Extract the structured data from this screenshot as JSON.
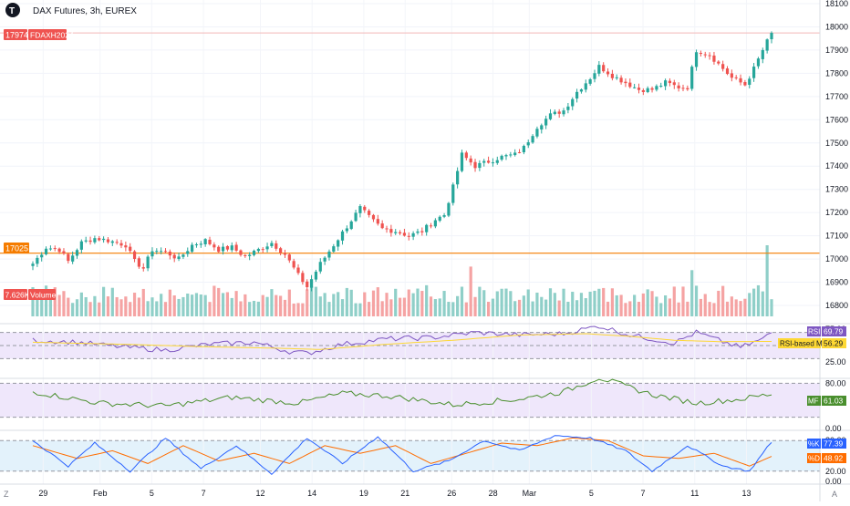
{
  "header": {
    "title": "DAX Futures, 3h, EUREX",
    "corner_icon": "logo-icon"
  },
  "price_scale": {
    "ticks": [
      "18100",
      "18000",
      "17900",
      "17800",
      "17700",
      "17600",
      "17500",
      "17400",
      "17300",
      "17200",
      "17100",
      "17000",
      "16900",
      "16800"
    ],
    "last_price": "17974",
    "symbol_label": "FDAXH2024",
    "level_label": "17025",
    "volume_label": "Volume",
    "volume_value": "7.626K"
  },
  "rsi_panel": {
    "label": "RSI",
    "value": "69.79",
    "ma_label": "RSI-based MA",
    "ma_value": "56.29",
    "ticks": [
      "75.00",
      "50.00",
      "25.00"
    ]
  },
  "mf_panel": {
    "label": "MF",
    "value": "61.03",
    "ticks": [
      "80.00",
      "0.00"
    ]
  },
  "stoch_panel": {
    "k_label": "%K",
    "k_value": "77.39",
    "d_label": "%D",
    "d_value": "48.92",
    "ticks": [
      "80.00",
      "20.00",
      "0.00"
    ]
  },
  "time_axis": {
    "labels": [
      "29",
      "Feb",
      "5",
      "7",
      "12",
      "14",
      "19",
      "21",
      "26",
      "28",
      "Mar",
      "5",
      "7",
      "11",
      "13"
    ],
    "left_icon": "Z",
    "right_icon": "A"
  },
  "colors": {
    "up": "#26a69a",
    "down": "#ef5350",
    "vol_up": "#8fcfc8",
    "vol_down": "#f5a3a3",
    "level": "#f57c00",
    "last": "#ef5350",
    "rsi": "#7e57c2",
    "rsi_ma": "#fdd835",
    "mf": "#4a8f2e",
    "k": "#2962ff",
    "d": "#ff6d00"
  },
  "chart_data": {
    "type": "candlestick",
    "title": "DAX Futures, 3h, EUREX",
    "ylim": [
      16800,
      18100
    ],
    "level_line": 17025,
    "last_price": 17974,
    "anchors": [
      [
        0,
        16980
      ],
      [
        3,
        17050
      ],
      [
        6,
        17040
      ],
      [
        8,
        16990
      ],
      [
        11,
        17070
      ],
      [
        14,
        17090
      ],
      [
        17,
        17080
      ],
      [
        21,
        17060
      ],
      [
        23,
        16990
      ],
      [
        25,
        16960
      ],
      [
        27,
        17040
      ],
      [
        30,
        17030
      ],
      [
        33,
        17000
      ],
      [
        36,
        17060
      ],
      [
        39,
        17080
      ],
      [
        42,
        17040
      ],
      [
        45,
        17050
      ],
      [
        48,
        17010
      ],
      [
        51,
        17040
      ],
      [
        54,
        17070
      ],
      [
        57,
        17020
      ],
      [
        60,
        16930
      ],
      [
        62,
        16880
      ],
      [
        65,
        16980
      ],
      [
        68,
        17060
      ],
      [
        71,
        17140
      ],
      [
        74,
        17220
      ],
      [
        76,
        17180
      ],
      [
        79,
        17130
      ],
      [
        82,
        17120
      ],
      [
        85,
        17100
      ],
      [
        88,
        17120
      ],
      [
        91,
        17170
      ],
      [
        93,
        17190
      ],
      [
        95,
        17310
      ],
      [
        97,
        17450
      ],
      [
        100,
        17400
      ],
      [
        103,
        17420
      ],
      [
        106,
        17440
      ],
      [
        109,
        17450
      ],
      [
        111,
        17480
      ],
      [
        114,
        17570
      ],
      [
        117,
        17620
      ],
      [
        120,
        17640
      ],
      [
        123,
        17720
      ],
      [
        126,
        17780
      ],
      [
        128,
        17830
      ],
      [
        131,
        17790
      ],
      [
        134,
        17760
      ],
      [
        137,
        17730
      ],
      [
        140,
        17730
      ],
      [
        143,
        17760
      ],
      [
        146,
        17740
      ],
      [
        148,
        17740
      ],
      [
        150,
        17900
      ],
      [
        153,
        17880
      ],
      [
        155,
        17840
      ],
      [
        158,
        17780
      ],
      [
        161,
        17750
      ],
      [
        163,
        17820
      ],
      [
        165,
        17900
      ],
      [
        167,
        17974
      ]
    ],
    "volume_spikes": [
      [
        99,
        70
      ],
      [
        149,
        65
      ],
      [
        166,
        100
      ]
    ],
    "rsi": [
      [
        0,
        58
      ],
      [
        10,
        55
      ],
      [
        20,
        48
      ],
      [
        30,
        43
      ],
      [
        40,
        52
      ],
      [
        50,
        55
      ],
      [
        58,
        41
      ],
      [
        62,
        38
      ],
      [
        70,
        52
      ],
      [
        80,
        60
      ],
      [
        90,
        62
      ],
      [
        100,
        70
      ],
      [
        110,
        66
      ],
      [
        120,
        68
      ],
      [
        128,
        80
      ],
      [
        135,
        66
      ],
      [
        145,
        54
      ],
      [
        150,
        70
      ],
      [
        155,
        58
      ],
      [
        160,
        47
      ],
      [
        165,
        60
      ],
      [
        167,
        69.79
      ]
    ],
    "rsi_ma": [
      [
        0,
        55
      ],
      [
        20,
        52
      ],
      [
        40,
        48
      ],
      [
        55,
        46
      ],
      [
        65,
        44
      ],
      [
        80,
        52
      ],
      [
        95,
        58
      ],
      [
        110,
        66
      ],
      [
        125,
        68
      ],
      [
        135,
        64
      ],
      [
        145,
        58
      ],
      [
        155,
        56
      ],
      [
        167,
        56.29
      ]
    ],
    "mf": [
      [
        0,
        65
      ],
      [
        15,
        45
      ],
      [
        30,
        40
      ],
      [
        45,
        55
      ],
      [
        60,
        45
      ],
      [
        70,
        62
      ],
      [
        80,
        58
      ],
      [
        95,
        42
      ],
      [
        110,
        52
      ],
      [
        120,
        65
      ],
      [
        128,
        90
      ],
      [
        140,
        60
      ],
      [
        150,
        45
      ],
      [
        160,
        52
      ],
      [
        167,
        61.03
      ]
    ],
    "stoch_k": [
      [
        0,
        80
      ],
      [
        8,
        30
      ],
      [
        14,
        75
      ],
      [
        22,
        20
      ],
      [
        30,
        85
      ],
      [
        38,
        25
      ],
      [
        46,
        70
      ],
      [
        54,
        15
      ],
      [
        62,
        85
      ],
      [
        70,
        35
      ],
      [
        78,
        88
      ],
      [
        86,
        20
      ],
      [
        94,
        40
      ],
      [
        102,
        80
      ],
      [
        110,
        60
      ],
      [
        118,
        90
      ],
      [
        126,
        85
      ],
      [
        134,
        60
      ],
      [
        140,
        20
      ],
      [
        148,
        70
      ],
      [
        156,
        30
      ],
      [
        162,
        20
      ],
      [
        167,
        77.39
      ]
    ],
    "stoch_d": [
      [
        0,
        70
      ],
      [
        10,
        45
      ],
      [
        18,
        60
      ],
      [
        26,
        35
      ],
      [
        34,
        70
      ],
      [
        42,
        40
      ],
      [
        50,
        55
      ],
      [
        58,
        35
      ],
      [
        66,
        70
      ],
      [
        74,
        55
      ],
      [
        82,
        70
      ],
      [
        90,
        35
      ],
      [
        98,
        55
      ],
      [
        106,
        75
      ],
      [
        114,
        70
      ],
      [
        122,
        85
      ],
      [
        130,
        80
      ],
      [
        138,
        50
      ],
      [
        146,
        45
      ],
      [
        154,
        55
      ],
      [
        162,
        30
      ],
      [
        167,
        48.92
      ]
    ]
  }
}
